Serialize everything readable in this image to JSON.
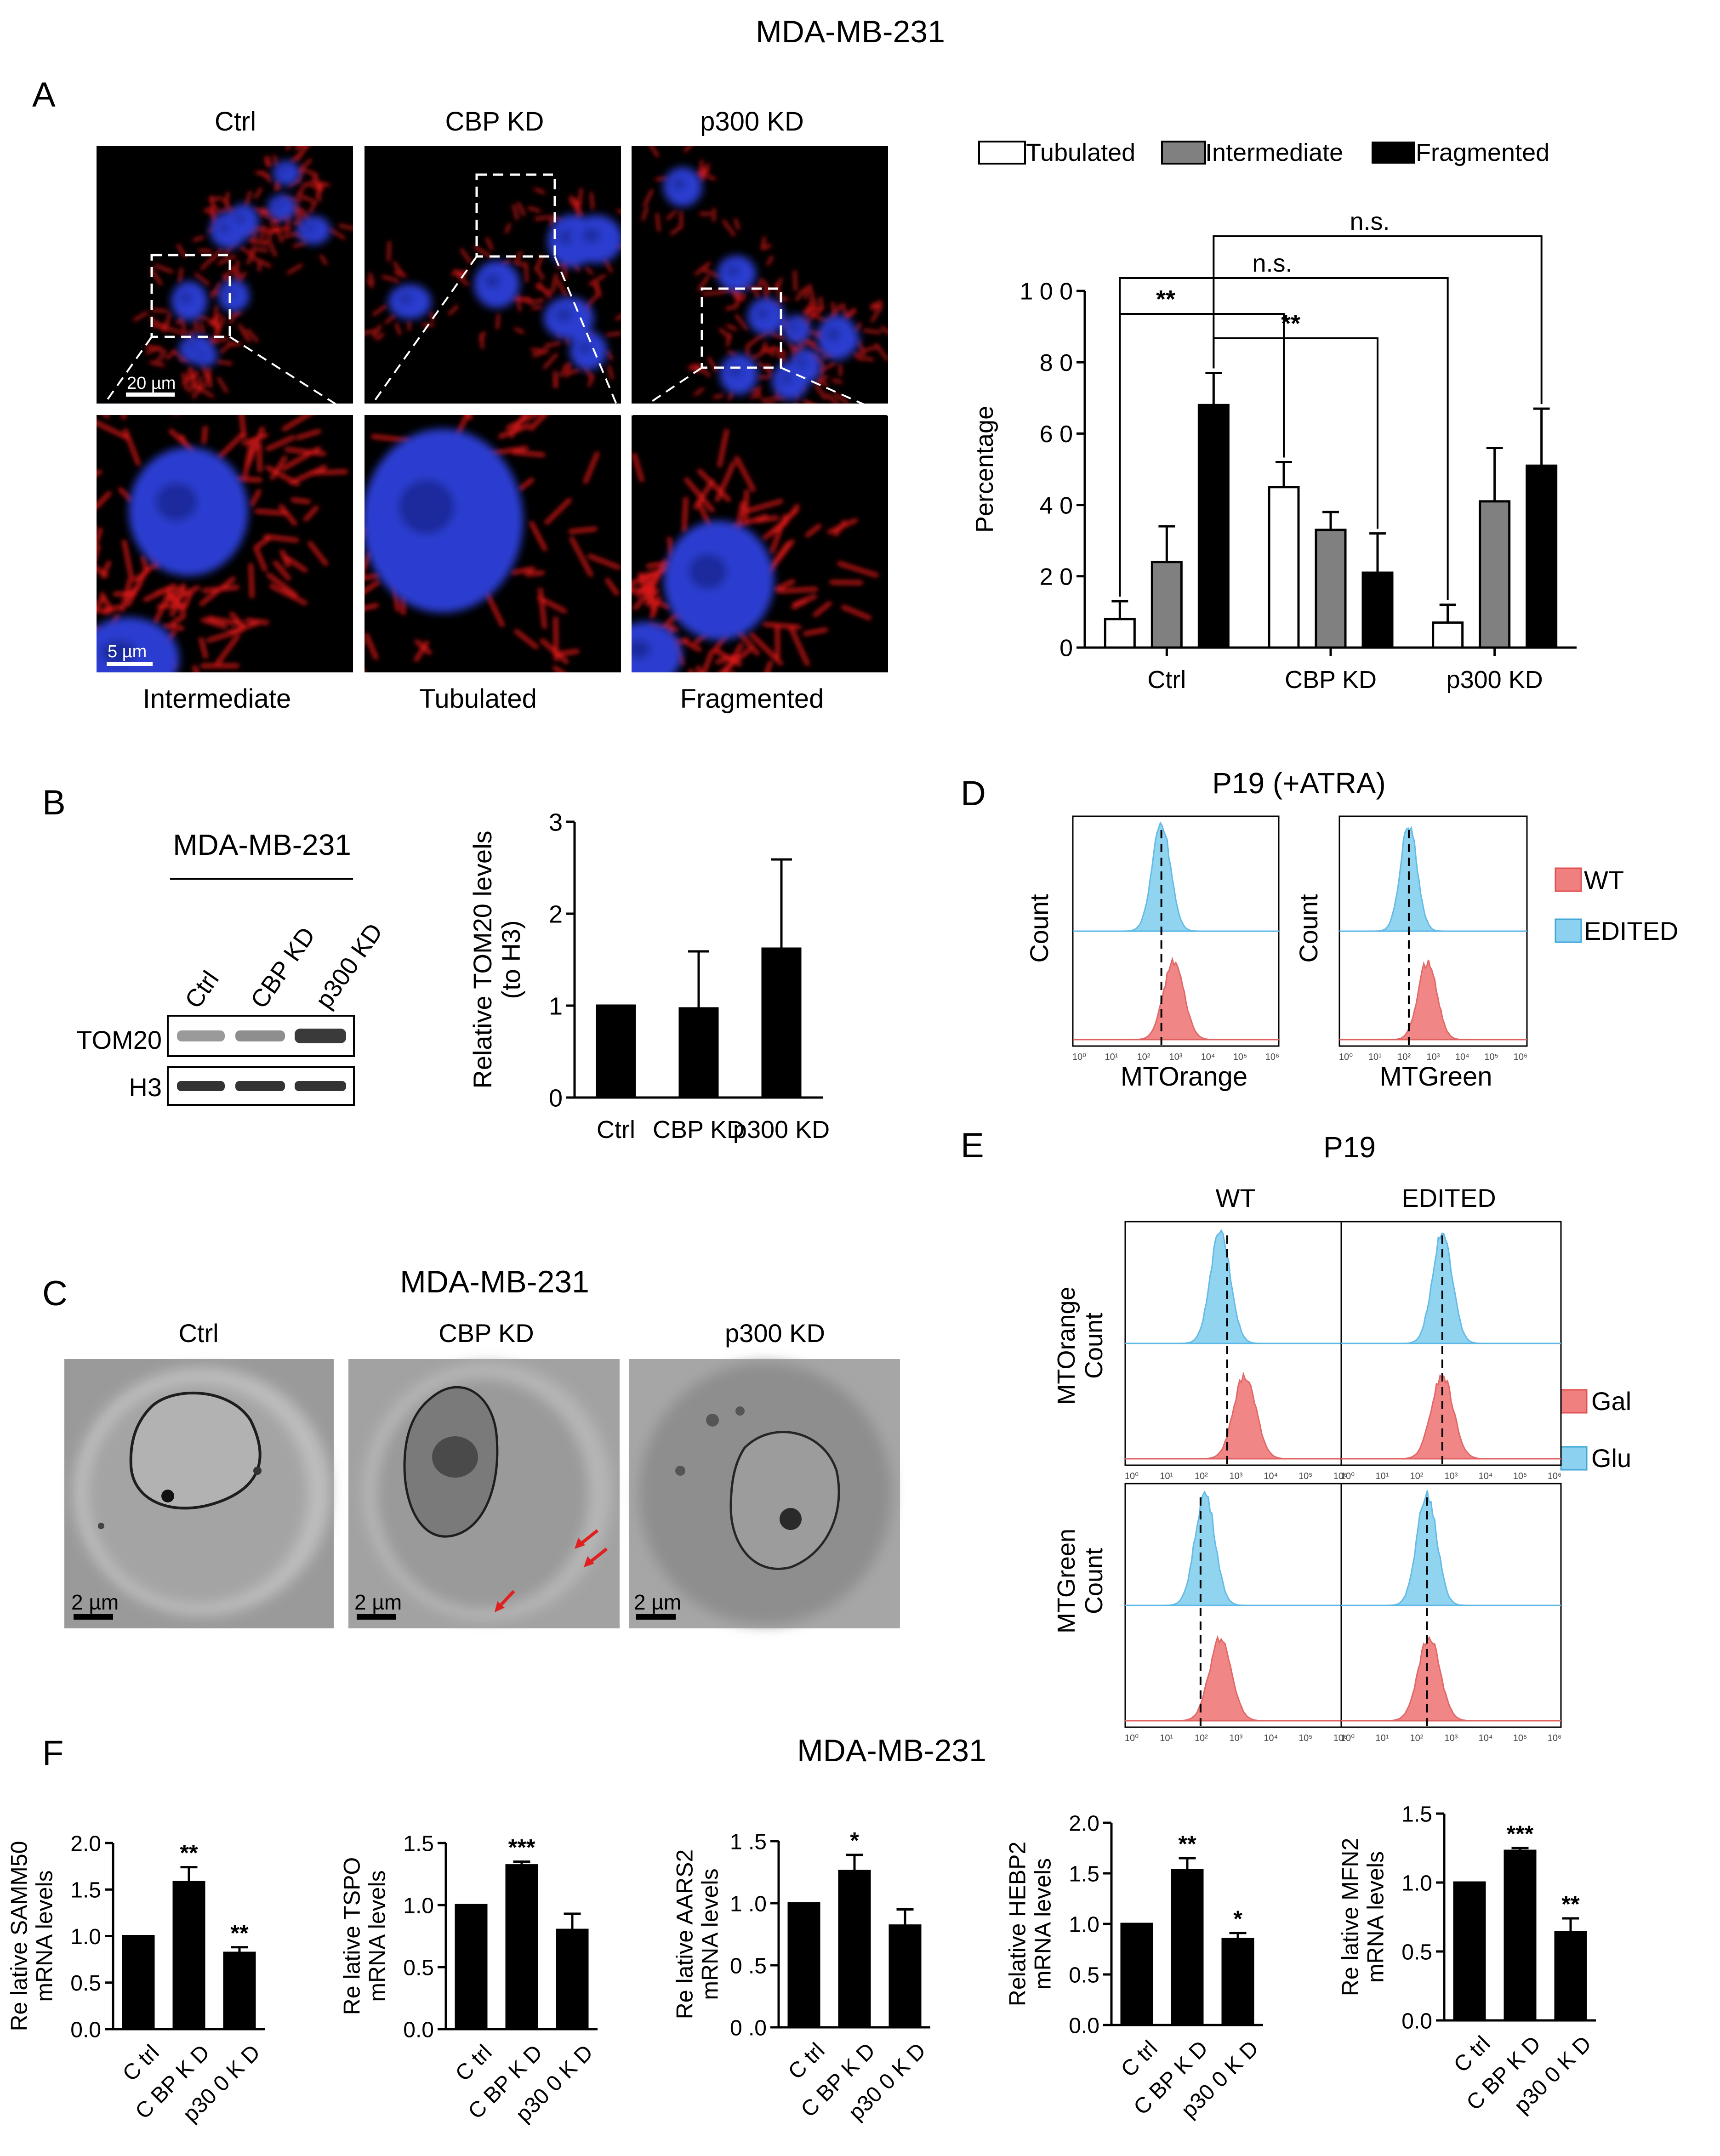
{
  "titles": {
    "main": "MDA-MB-231",
    "panel_b": "MDA-MB-231",
    "panel_c": "MDA-MB-231",
    "panel_d": "P19 (+ATRA)",
    "panel_e": "P19",
    "panel_f": "MDA-MB-231"
  },
  "panel_letters": [
    "A",
    "B",
    "C",
    "D",
    "E",
    "F"
  ],
  "panel_a": {
    "col_headers": [
      "Ctrl",
      "CBP KD",
      "p300 KD"
    ],
    "row_labels": [
      "Intermediate",
      "Tubulated",
      "Fragmented"
    ],
    "scale_top": "20 µm",
    "scale_bottom": "5 µm"
  },
  "panel_b": {
    "lane_labels": [
      "Ctrl",
      "CBP KD",
      "p300 KD"
    ],
    "blot_labels": [
      "TOM20",
      "H3"
    ]
  },
  "panel_c": {
    "labels": [
      "Ctrl",
      "CBP KD",
      "p300 KD"
    ],
    "scale": "2 µm"
  },
  "panel_d": {
    "ylabel": "Count",
    "xlabels": [
      "MTOrange",
      "MTGreen"
    ],
    "legend": [
      "WT",
      "EDITED"
    ]
  },
  "panel_e": {
    "col_labels": [
      "WT",
      "EDITED"
    ],
    "row_labels_line1": [
      "MTOrange",
      "MTGreen"
    ],
    "row_labels_line2": [
      "Count",
      "Count"
    ],
    "legend": [
      "Gal",
      "Glu"
    ]
  },
  "flow_ticks": [
    "10⁰",
    "10¹",
    "10²",
    "10³",
    "10⁴",
    "10⁵",
    "10⁶"
  ],
  "colors": {
    "nucleus_blue": "#2a3ed0",
    "mito_red": "#e01818",
    "hist_red": "#f08080",
    "hist_blue": "#8cd2f0",
    "bar_gray": "#808080",
    "arrow_red": "#e02020"
  },
  "chart_data": [
    {
      "type": "bar",
      "id": "A",
      "categories": [
        "Ctrl",
        "CBP KD",
        "p300 KD"
      ],
      "series": [
        {
          "name": "Tubulated",
          "values": [
            8,
            45,
            7
          ],
          "errors": [
            5,
            7,
            5
          ],
          "color": "#ffffff"
        },
        {
          "name": "Intermediate",
          "values": [
            24,
            33,
            41
          ],
          "errors": [
            10,
            5,
            15
          ],
          "color": "#808080"
        },
        {
          "name": "Fragmented",
          "values": [
            68,
            21,
            51
          ],
          "errors": [
            9,
            11,
            16
          ],
          "color": "#000000"
        }
      ],
      "ylabel": "Percentage",
      "ylim": [
        0,
        100
      ],
      "yticks": [
        "0",
        "2 0",
        "4 0",
        "6 0",
        "8 0",
        "1 0 0"
      ],
      "legend_position": "top",
      "annotations": [
        "**",
        "**",
        "n.s.",
        "n.s."
      ]
    },
    {
      "type": "bar",
      "id": "B",
      "categories": [
        "Ctrl",
        "CBP KD",
        "p300 KD"
      ],
      "values": [
        1.0,
        0.97,
        1.62
      ],
      "errors": [
        0,
        0.62,
        0.97
      ],
      "ylabel": "Relative TOM20 levels (to H3)",
      "ylim": [
        0,
        3
      ],
      "yticks": [
        "0",
        "1",
        "2",
        "3"
      ]
    },
    {
      "type": "bar",
      "id": "F1",
      "categories": [
        "C trl",
        "C BP K D",
        "p30 0 K D"
      ],
      "values": [
        1.0,
        1.58,
        0.82
      ],
      "errors": [
        0,
        0.16,
        0.06
      ],
      "sig": [
        "",
        "**",
        "**"
      ],
      "ylabel": "Re lative SAMM50 mRNA levels",
      "ylim": [
        0,
        2.0
      ],
      "yticks": [
        "0.0",
        "0.5",
        "1.0",
        "1.5",
        "2.0"
      ]
    },
    {
      "type": "bar",
      "id": "F2",
      "categories": [
        "C trl",
        "C BP K D",
        "p30 0 K D"
      ],
      "values": [
        1.0,
        1.32,
        0.8
      ],
      "errors": [
        0,
        0.03,
        0.13
      ],
      "sig": [
        "",
        "***",
        ""
      ],
      "ylabel": "Re lative TSPO mRNA levels",
      "ylim": [
        0,
        1.5
      ],
      "yticks": [
        "0.0",
        "0.5",
        "1.0",
        "1.5"
      ]
    },
    {
      "type": "bar",
      "id": "F3",
      "categories": [
        "C trl",
        "C BP K D",
        "p30 0 K D"
      ],
      "values": [
        1.0,
        1.26,
        0.82
      ],
      "errors": [
        0,
        0.13,
        0.13
      ],
      "sig": [
        "",
        "*",
        ""
      ],
      "ylabel": "Re lative AARS2 mRNA levels",
      "ylim": [
        0,
        1.5
      ],
      "yticks": [
        "0 .0",
        "0 .5",
        "1 .0",
        "1 .5"
      ]
    },
    {
      "type": "bar",
      "id": "F4",
      "categories": [
        "C trl",
        "C BP K D",
        "p30 0 K D"
      ],
      "values": [
        1.0,
        1.53,
        0.85
      ],
      "errors": [
        0,
        0.12,
        0.06
      ],
      "sig": [
        "",
        "**",
        "*"
      ],
      "ylabel": "Relative HEBP2 mRNA levels",
      "ylim": [
        0,
        2.0
      ],
      "yticks": [
        "0.0",
        "0.5",
        "1.0",
        "1.5",
        "2.0"
      ]
    },
    {
      "type": "bar",
      "id": "F5",
      "categories": [
        "C trl",
        "C BP K D",
        "p30 0 K D"
      ],
      "values": [
        1.0,
        1.23,
        0.64
      ],
      "errors": [
        0,
        0.02,
        0.1
      ],
      "sig": [
        "",
        "***",
        "**"
      ],
      "ylabel": "Re lative MFN2 mRNA levels",
      "ylim": [
        0,
        1.5
      ],
      "yticks": [
        "0.0",
        "0.5",
        "1.0",
        "1.5"
      ]
    }
  ]
}
